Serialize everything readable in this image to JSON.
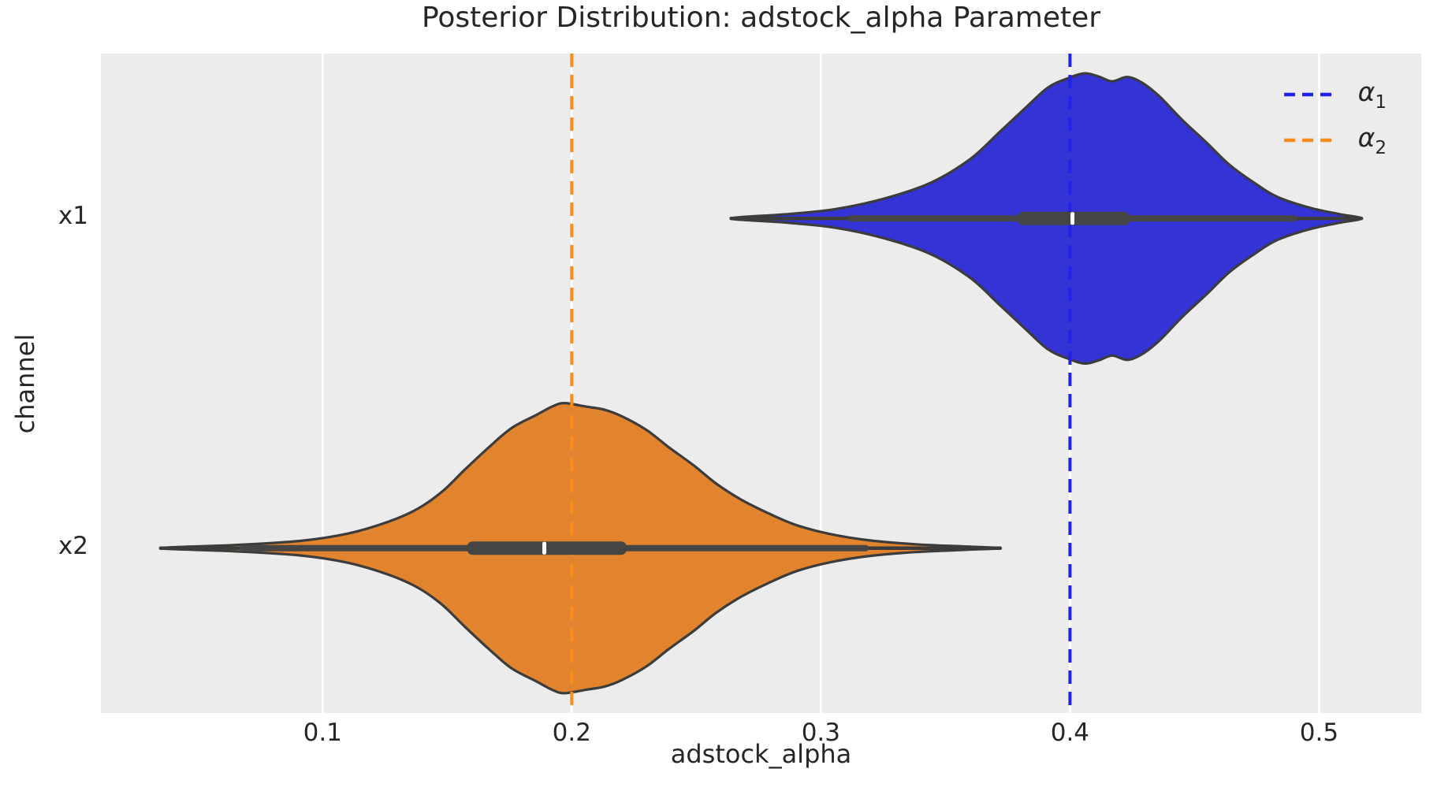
{
  "title": "Posterior Distribution: adstock_alpha Parameter",
  "chart_data": {
    "type": "violin",
    "orientation": "horizontal",
    "title": "Posterior Distribution: adstock_alpha Parameter",
    "xlabel": "adstock_alpha",
    "ylabel": "channel",
    "xlim": [
      0.011,
      0.541
    ],
    "ylim": [
      -0.5,
      1.5
    ],
    "grid": true,
    "grid_color": "#ffffff",
    "axes_background": "#ececec",
    "figure_background": "#ffffff",
    "text_color": "#262626",
    "outline_color": "#3c3c3c",
    "box_color": "#454545",
    "median_color": "#ffffff",
    "violin_width": 0.88,
    "categories": [
      "x1",
      "x2"
    ],
    "category_positions": [
      0,
      1
    ],
    "xticks": [
      {
        "value": 0.1,
        "label": "0.1"
      },
      {
        "value": 0.2,
        "label": "0.2"
      },
      {
        "value": 0.3,
        "label": "0.3"
      },
      {
        "value": 0.4,
        "label": "0.4"
      },
      {
        "value": 0.5,
        "label": "0.5"
      }
    ],
    "series": [
      {
        "channel": "x1",
        "fill": "#3333d6",
        "median": 0.401,
        "iqr": [
          0.379,
          0.424
        ],
        "whiskers": [
          0.312,
          0.49
        ],
        "range": [
          0.264,
          0.517
        ],
        "density": [
          [
            0.264,
            0
          ],
          [
            0.287,
            0.03
          ],
          [
            0.306,
            0.065
          ],
          [
            0.325,
            0.135
          ],
          [
            0.344,
            0.245
          ],
          [
            0.36,
            0.41
          ],
          [
            0.372,
            0.6
          ],
          [
            0.382,
            0.76
          ],
          [
            0.391,
            0.9
          ],
          [
            0.399,
            0.965
          ],
          [
            0.406,
            1.0
          ],
          [
            0.412,
            0.975
          ],
          [
            0.417,
            0.945
          ],
          [
            0.423,
            0.975
          ],
          [
            0.429,
            0.935
          ],
          [
            0.436,
            0.84
          ],
          [
            0.445,
            0.68
          ],
          [
            0.455,
            0.52
          ],
          [
            0.464,
            0.37
          ],
          [
            0.474,
            0.245
          ],
          [
            0.483,
            0.15
          ],
          [
            0.496,
            0.075
          ],
          [
            0.508,
            0.03
          ],
          [
            0.517,
            0
          ]
        ]
      },
      {
        "channel": "x2",
        "fill": "#e1842d",
        "median": 0.189,
        "iqr": [
          0.158,
          0.222
        ],
        "whiskers": [
          0.068,
          0.318
        ],
        "range": [
          0.035,
          0.372
        ],
        "density": [
          [
            0.035,
            0
          ],
          [
            0.065,
            0.022
          ],
          [
            0.091,
            0.05
          ],
          [
            0.11,
            0.1
          ],
          [
            0.126,
            0.18
          ],
          [
            0.138,
            0.27
          ],
          [
            0.148,
            0.39
          ],
          [
            0.157,
            0.54
          ],
          [
            0.167,
            0.7
          ],
          [
            0.176,
            0.83
          ],
          [
            0.186,
            0.92
          ],
          [
            0.192,
            0.975
          ],
          [
            0.197,
            1.0
          ],
          [
            0.206,
            0.975
          ],
          [
            0.213,
            0.955
          ],
          [
            0.22,
            0.91
          ],
          [
            0.23,
            0.815
          ],
          [
            0.239,
            0.695
          ],
          [
            0.249,
            0.57
          ],
          [
            0.258,
            0.445
          ],
          [
            0.268,
            0.335
          ],
          [
            0.279,
            0.24
          ],
          [
            0.29,
            0.16
          ],
          [
            0.303,
            0.1
          ],
          [
            0.319,
            0.055
          ],
          [
            0.338,
            0.027
          ],
          [
            0.357,
            0.012
          ],
          [
            0.372,
            0
          ]
        ]
      }
    ],
    "reference_lines": [
      {
        "name": "alpha-1",
        "value": 0.4,
        "color": "#2222e8"
      },
      {
        "name": "alpha-2",
        "value": 0.2,
        "color": "#fb8c1e"
      }
    ],
    "legend": {
      "position": "upper right",
      "items": [
        {
          "symbol": "α",
          "subscript": "1",
          "color": "#2222e8"
        },
        {
          "symbol": "α",
          "subscript": "2",
          "color": "#fb8c1e"
        }
      ]
    }
  }
}
